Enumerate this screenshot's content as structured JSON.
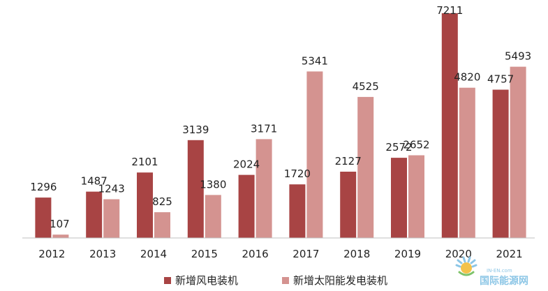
{
  "chart_data": {
    "type": "bar",
    "categories": [
      "2012",
      "2013",
      "2014",
      "2015",
      "2016",
      "2017",
      "2018",
      "2019",
      "2020",
      "2021"
    ],
    "series": [
      {
        "name": "新增风电装机",
        "values": [
          1296,
          1487,
          2101,
          3139,
          2024,
          1720,
          2127,
          2572,
          7211,
          4757
        ],
        "color": "#a84444"
      },
      {
        "name": "新增太阳能发电装机",
        "values": [
          107,
          1243,
          825,
          1380,
          3171,
          5341,
          4525,
          2652,
          4820,
          5493
        ],
        "color": "#d49390"
      }
    ],
    "ylim": [
      0,
      7500
    ],
    "grid": false,
    "legend_position": "bottom"
  },
  "watermark": {
    "text": "国际能源网",
    "small_text": "IN-EN.com",
    "icon": "sun-logo-icon"
  }
}
